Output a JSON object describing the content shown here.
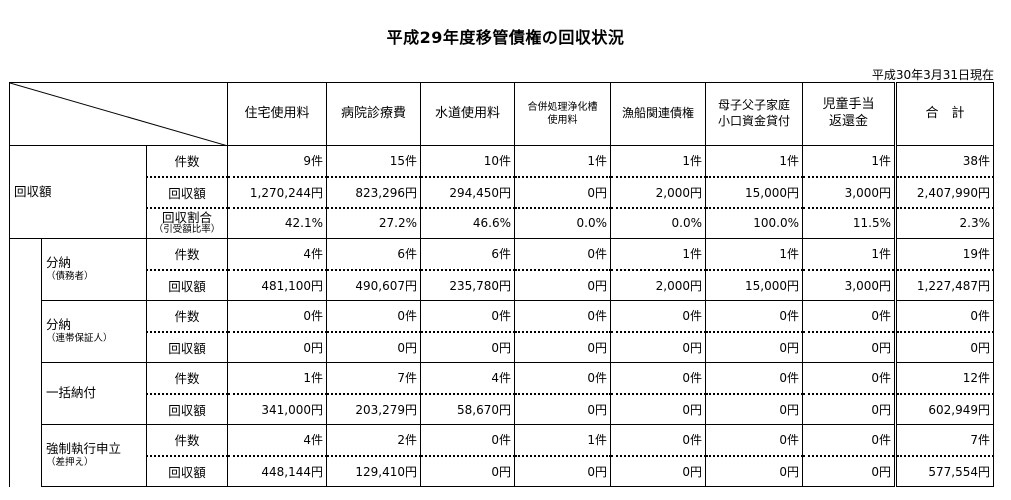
{
  "title": "平成29年度移管債権の回収状況",
  "as_of": "平成30年3月31日現在",
  "columns": [
    {
      "line1": "住宅使用料",
      "line2": ""
    },
    {
      "line1": "病院診療費",
      "line2": ""
    },
    {
      "line1": "水道使用料",
      "line2": ""
    },
    {
      "line1": "合併処理浄化槽",
      "line2": "使用料"
    },
    {
      "line1": "漁船関連債権",
      "line2": ""
    },
    {
      "line1": "母子父子家庭",
      "line2": "小口資金貸付"
    },
    {
      "line1": "児童手当",
      "line2": "返還金"
    },
    {
      "line1": "合　計",
      "line2": ""
    }
  ],
  "groups": {
    "total": {
      "label": "回収額"
    },
    "bunno_debtor": {
      "label": "分納",
      "sub": "（債務者）"
    },
    "bunno_guarantor": {
      "label": "分納",
      "sub": "（連帯保証人）"
    },
    "ikkatsu": {
      "label": "一括納付"
    },
    "kyosei": {
      "label": "強制執行申立",
      "sub": "（差押え）"
    }
  },
  "row_labels": {
    "count": "件数",
    "amount": "回収額",
    "rate": "回収割合",
    "rate_sub": "（引受額比率）"
  },
  "rows": {
    "total_count": [
      "9件",
      "15件",
      "10件",
      "1件",
      "1件",
      "1件",
      "1件",
      "38件"
    ],
    "total_amount": [
      "1,270,244円",
      "823,296円",
      "294,450円",
      "0円",
      "2,000円",
      "15,000円",
      "3,000円",
      "2,407,990円"
    ],
    "total_rate": [
      "42.1%",
      "27.2%",
      "46.6%",
      "0.0%",
      "0.0%",
      "100.0%",
      "11.5%",
      "2.3%"
    ],
    "bd_count": [
      "4件",
      "6件",
      "6件",
      "0件",
      "1件",
      "1件",
      "1件",
      "19件"
    ],
    "bd_amount": [
      "481,100円",
      "490,607円",
      "235,780円",
      "0円",
      "2,000円",
      "15,000円",
      "3,000円",
      "1,227,487円"
    ],
    "bg_count": [
      "0件",
      "0件",
      "0件",
      "0件",
      "0件",
      "0件",
      "0件",
      "0件"
    ],
    "bg_amount": [
      "0円",
      "0円",
      "0円",
      "0円",
      "0円",
      "0円",
      "0円",
      "0円"
    ],
    "ik_count": [
      "1件",
      "7件",
      "4件",
      "0件",
      "0件",
      "0件",
      "0件",
      "12件"
    ],
    "ik_amount": [
      "341,000円",
      "203,279円",
      "58,670円",
      "0円",
      "0円",
      "0円",
      "0円",
      "602,949円"
    ],
    "ky_count": [
      "4件",
      "2件",
      "0件",
      "1件",
      "0件",
      "0件",
      "0件",
      "7件"
    ],
    "ky_amount": [
      "448,144円",
      "129,410円",
      "0円",
      "0円",
      "0円",
      "0円",
      "0円",
      "577,554円"
    ]
  }
}
